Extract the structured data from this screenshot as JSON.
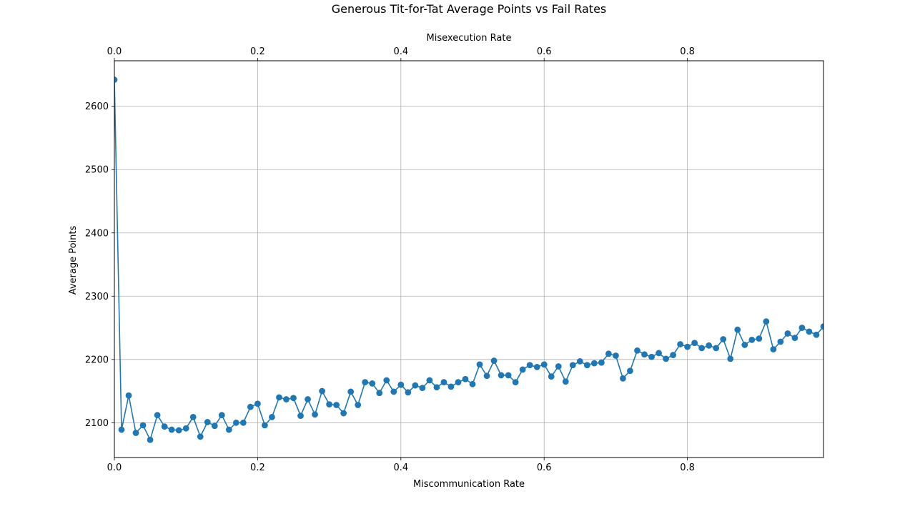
{
  "chart_data": {
    "type": "line",
    "title": "Generous Tit-for-Tat Average Points vs Fail Rates",
    "xlabel": "Miscommunication Rate",
    "x2label": "Misexecution Rate",
    "ylabel": "Average Points",
    "xlim": [
      0,
      0.99
    ],
    "ylim": [
      2045,
      2672
    ],
    "xticks": [
      0,
      0.2,
      0.4,
      0.6,
      0.8
    ],
    "xtick_labels": [
      "0.0",
      "0.2",
      "0.4",
      "0.6",
      "0.8"
    ],
    "yticks": [
      2100,
      2200,
      2300,
      2400,
      2500,
      2600
    ],
    "ytick_labels": [
      "2100",
      "2200",
      "2300",
      "2400",
      "2500",
      "2600"
    ],
    "grid": true,
    "color": "#1f77b4",
    "marker": "circle",
    "series": [
      {
        "x": [
          0.0,
          0.01,
          0.02,
          0.03,
          0.04,
          0.05,
          0.06,
          0.07,
          0.08,
          0.09,
          0.1,
          0.11,
          0.12,
          0.13,
          0.14,
          0.15,
          0.16,
          0.17,
          0.18,
          0.19,
          0.2,
          0.21,
          0.22,
          0.23,
          0.24,
          0.25,
          0.26,
          0.27,
          0.28,
          0.29,
          0.3,
          0.31,
          0.32,
          0.33,
          0.34,
          0.35,
          0.36,
          0.37,
          0.38,
          0.39,
          0.4,
          0.41,
          0.42,
          0.43,
          0.44,
          0.45,
          0.46,
          0.47,
          0.48,
          0.49,
          0.5,
          0.51,
          0.52,
          0.53,
          0.54,
          0.55,
          0.56,
          0.57,
          0.58,
          0.59,
          0.6,
          0.61,
          0.62,
          0.63,
          0.64,
          0.65,
          0.66,
          0.67,
          0.68,
          0.69,
          0.7,
          0.71,
          0.72,
          0.73,
          0.74,
          0.75,
          0.76,
          0.77,
          0.78,
          0.79,
          0.8,
          0.81,
          0.82,
          0.83,
          0.84,
          0.85,
          0.86,
          0.87,
          0.88,
          0.89,
          0.9,
          0.91,
          0.92,
          0.93,
          0.94,
          0.95,
          0.96,
          0.97,
          0.98,
          0.99
        ],
        "y": [
          2642,
          2089,
          2143,
          2084,
          2096,
          2073,
          2112,
          2094,
          2089,
          2088,
          2091,
          2109,
          2078,
          2101,
          2095,
          2112,
          2089,
          2100,
          2100,
          2125,
          2130,
          2096,
          2109,
          2140,
          2137,
          2139,
          2111,
          2137,
          2113,
          2150,
          2129,
          2128,
          2115,
          2149,
          2128,
          2164,
          2162,
          2147,
          2167,
          2149,
          2160,
          2148,
          2159,
          2155,
          2167,
          2156,
          2164,
          2157,
          2164,
          2169,
          2161,
          2192,
          2174,
          2198,
          2175,
          2175,
          2164,
          2184,
          2191,
          2188,
          2192,
          2173,
          2189,
          2165,
          2191,
          2197,
          2191,
          2194,
          2195,
          2209,
          2206,
          2170,
          2182,
          2214,
          2208,
          2204,
          2210,
          2201,
          2207,
          2224,
          2220,
          2226,
          2218,
          2222,
          2218,
          2232,
          2201,
          2247,
          2223,
          2231,
          2233,
          2260,
          2216,
          2228,
          2241,
          2234,
          2250,
          2244,
          2239,
          2252
        ]
      }
    ]
  }
}
